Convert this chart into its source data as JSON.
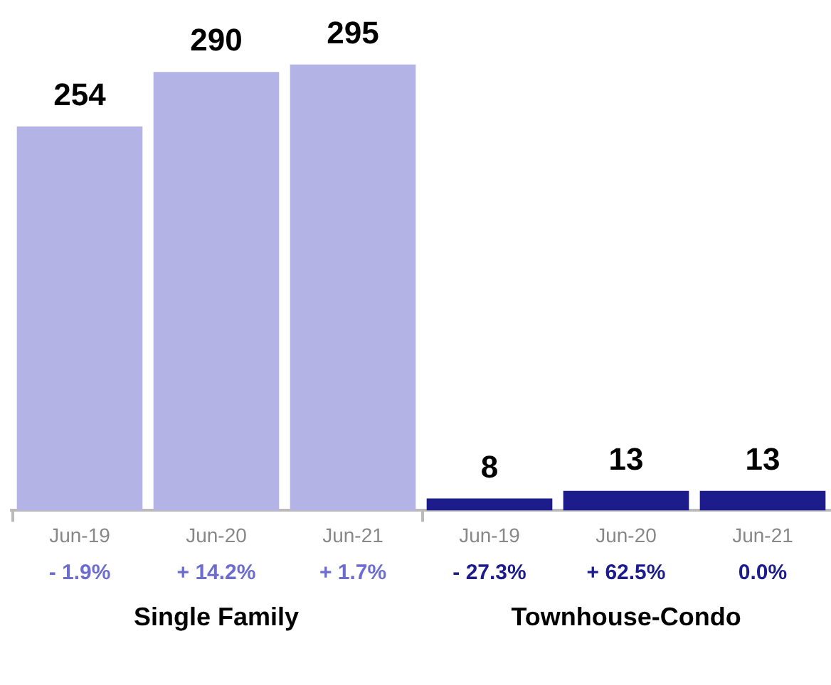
{
  "chart_data": {
    "type": "bar",
    "categories": [
      "Jun-19",
      "Jun-20",
      "Jun-21",
      "Jun-19",
      "Jun-20",
      "Jun-21"
    ],
    "values": [
      254,
      290,
      295,
      8,
      13,
      13
    ],
    "colors": [
      "#b3b3e6",
      "#b3b3e6",
      "#b3b3e6",
      "#1c1c8c",
      "#1c1c8c",
      "#1c1c8c"
    ],
    "annotations": [
      "- 1.9%",
      "+ 14.2%",
      "+ 1.7%",
      "- 27.3%",
      "+ 62.5%",
      "0.0%",
      "Single Family",
      "Townhouse-Condo"
    ],
    "data_labels": true
  }
}
